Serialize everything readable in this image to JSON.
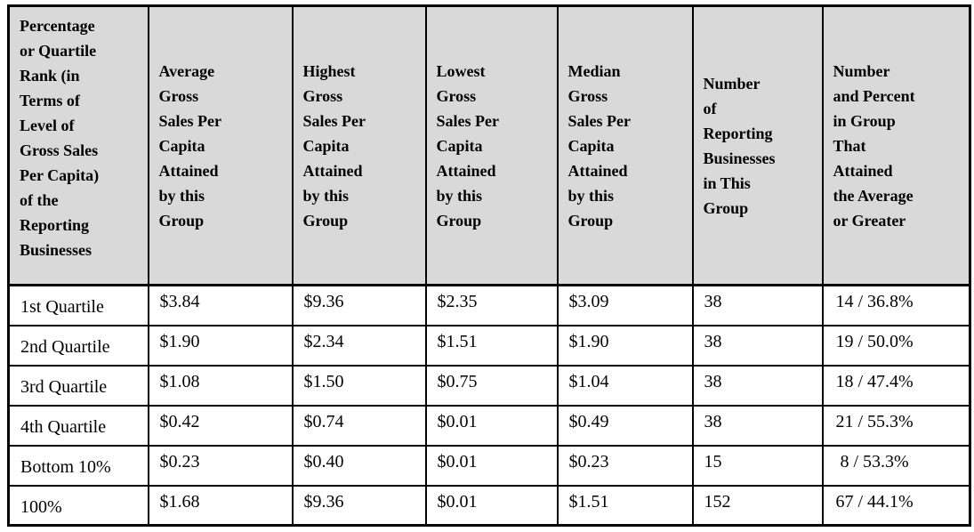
{
  "table": {
    "name": "gross-sales-per-capita-by-quartile",
    "colors": {
      "header_bg": "#d9d9d9",
      "border": "#000000",
      "row_bg": "#ffffff",
      "text": "#000000"
    },
    "columns": [
      {
        "header": "Percentage\nor Quartile\nRank (in\nTerms of\nLevel of\nGross Sales\nPer Capita)\nof the\nReporting\nBusinesses"
      },
      {
        "header": "Average\nGross\nSales Per\nCapita\nAttained\nby this\nGroup"
      },
      {
        "header": "Highest\nGross\nSales Per\nCapita\nAttained\nby this\nGroup"
      },
      {
        "header": "Lowest\nGross\nSales Per\nCapita\nAttained\nby this\nGroup"
      },
      {
        "header": "Median\nGross\nSales Per\nCapita\nAttained\nby this\nGroup"
      },
      {
        "header": "Number\nof\nReporting\nBusinesses\nin This\nGroup"
      },
      {
        "header": "Number\nand Percent\nin Group\nThat\nAttained\nthe Average\nor Greater"
      }
    ],
    "rows": [
      [
        "1st Quartile",
        "$3.84",
        "$9.36",
        "$2.35",
        "$3.09",
        "38",
        "14 / 36.8%"
      ],
      [
        "2nd Quartile",
        "$1.90",
        "$2.34",
        "$1.51",
        "$1.90",
        "38",
        "19 / 50.0%"
      ],
      [
        "3rd Quartile",
        "$1.08",
        "$1.50",
        "$0.75",
        "$1.04",
        "38",
        "18 / 47.4%"
      ],
      [
        "4th Quartile",
        "$0.42",
        "$0.74",
        "$0.01",
        "$0.49",
        "38",
        "21 / 55.3%"
      ],
      [
        "Bottom 10%",
        "$0.23",
        "$0.40",
        "$0.01",
        "$0.23",
        "15",
        " 8 / 53.3%"
      ],
      [
        "100%",
        "$1.68",
        "$9.36",
        "$0.01",
        "$1.51",
        "152",
        "67 / 44.1%"
      ]
    ]
  }
}
